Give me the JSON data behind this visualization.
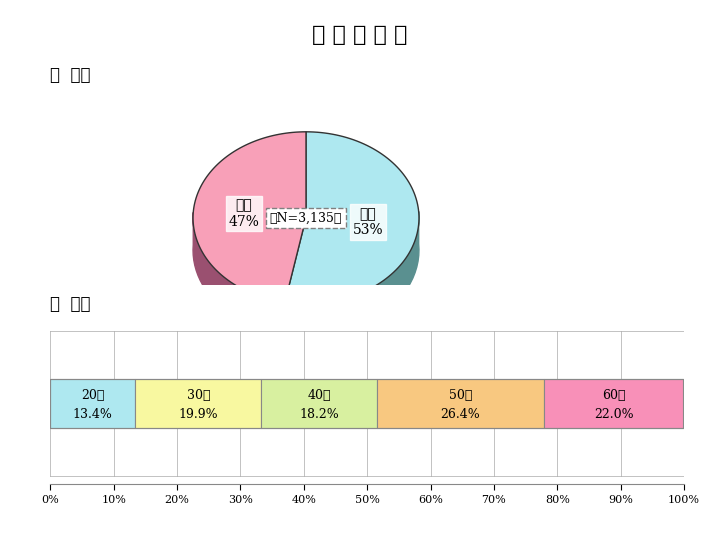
{
  "title": "回 答 者 属 性",
  "title_fontsize": 16,
  "section1_label": "１  性別",
  "section2_label": "２  年代",
  "pie_values": [
    53,
    47
  ],
  "pie_labels": [
    "男性\n53%",
    "女性\n47%"
  ],
  "pie_colors": [
    "#aee8f0",
    "#f8a0b8"
  ],
  "pie_shadow_colors": [
    "#5a9090",
    "#9a5070"
  ],
  "pie_center_label": "（N=3,135）",
  "bar_values": [
    13.4,
    19.9,
    18.2,
    26.4,
    22.0
  ],
  "bar_labels": [
    "20代\n13.4%",
    "30代\n19.9%",
    "40代\n18.2%",
    "50代\n26.4%",
    "60代\n22.0%"
  ],
  "bar_colors": [
    "#aee8f0",
    "#f8f8a0",
    "#d8f0a0",
    "#f8c880",
    "#f890b8"
  ],
  "bar_age_labels": [
    "20代",
    "30代",
    "40代",
    "50代",
    "60代"
  ],
  "bar_pct_labels": [
    "13.4%",
    "19.9%",
    "18.2%",
    "26.4%",
    "22.0%"
  ],
  "bg_color": "#ffffff"
}
